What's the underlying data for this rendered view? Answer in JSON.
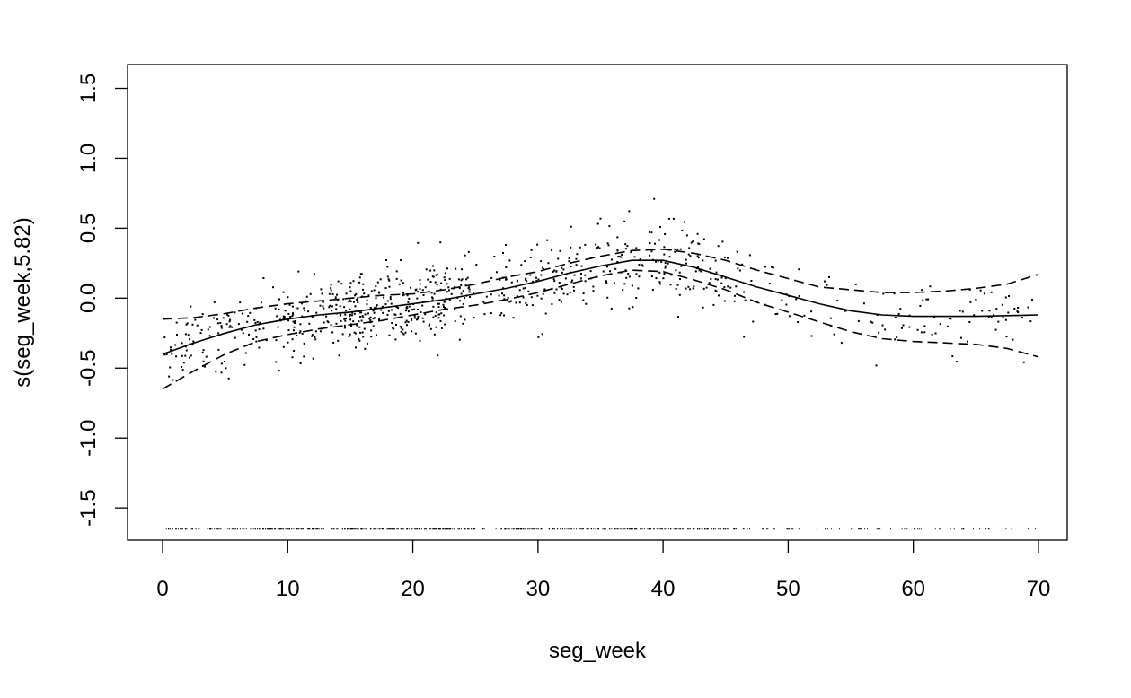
{
  "chart_data": {
    "type": "line",
    "title": "",
    "xlabel": "seg_week",
    "ylabel": "s(seg_week,5.82)",
    "xlim": [
      -2.8,
      72.3
    ],
    "ylim": [
      -1.73,
      1.67
    ],
    "xticks": [
      0,
      10,
      20,
      30,
      40,
      50,
      60,
      70
    ],
    "xtick_labels": [
      "0",
      "10",
      "20",
      "30",
      "40",
      "50",
      "60",
      "70"
    ],
    "yticks": [
      -1.5,
      -1.0,
      -0.5,
      0.0,
      0.5,
      1.0,
      1.5
    ],
    "ytick_labels": [
      "-1.5",
      "-1.0",
      "-0.5",
      "0.0",
      "0.5",
      "1.0",
      "1.5"
    ],
    "grid": false,
    "legend": "none",
    "color": "#000000",
    "series": [
      {
        "style": "solid",
        "x": [
          0,
          2.5,
          5,
          7.5,
          10,
          12.5,
          15,
          17.5,
          20,
          22.5,
          25,
          27.5,
          30,
          32.5,
          35,
          37.5,
          40,
          42.5,
          45,
          47.5,
          50,
          52.5,
          55,
          57.5,
          60,
          62.5,
          65,
          67.5,
          70
        ],
        "y": [
          -0.4,
          -0.32,
          -0.25,
          -0.19,
          -0.15,
          -0.12,
          -0.1,
          -0.07,
          -0.04,
          -0.01,
          0.03,
          0.07,
          0.12,
          0.18,
          0.23,
          0.27,
          0.27,
          0.22,
          0.15,
          0.08,
          0.02,
          -0.04,
          -0.09,
          -0.12,
          -0.13,
          -0.13,
          -0.13,
          -0.125,
          -0.12
        ]
      },
      {
        "style": "dashed",
        "x": [
          0,
          2.5,
          5,
          7.5,
          10,
          12.5,
          15,
          17.5,
          20,
          22.5,
          25,
          27.5,
          30,
          32.5,
          35,
          37.5,
          40,
          42.5,
          45,
          47.5,
          50,
          52.5,
          55,
          57.5,
          60,
          62.5,
          65,
          67.5,
          70
        ],
        "y": [
          -0.15,
          -0.14,
          -0.11,
          -0.07,
          -0.04,
          -0.02,
          0.0,
          0.02,
          0.03,
          0.06,
          0.1,
          0.15,
          0.19,
          0.25,
          0.3,
          0.34,
          0.35,
          0.32,
          0.27,
          0.2,
          0.14,
          0.08,
          0.06,
          0.04,
          0.04,
          0.05,
          0.07,
          0.1,
          0.17
        ]
      },
      {
        "style": "dashed",
        "x": [
          0,
          2.5,
          5,
          7.5,
          10,
          12.5,
          15,
          17.5,
          20,
          22.5,
          25,
          27.5,
          30,
          32.5,
          35,
          37.5,
          40,
          42.5,
          45,
          47.5,
          50,
          52.5,
          55,
          57.5,
          60,
          62.5,
          65,
          67.5,
          70
        ],
        "y": [
          -0.65,
          -0.52,
          -0.4,
          -0.31,
          -0.26,
          -0.22,
          -0.19,
          -0.16,
          -0.12,
          -0.08,
          -0.05,
          -0.01,
          0.04,
          0.1,
          0.16,
          0.2,
          0.19,
          0.13,
          0.06,
          -0.03,
          -0.1,
          -0.17,
          -0.24,
          -0.29,
          -0.31,
          -0.32,
          -0.33,
          -0.36,
          -0.42
        ]
      }
    ]
  }
}
